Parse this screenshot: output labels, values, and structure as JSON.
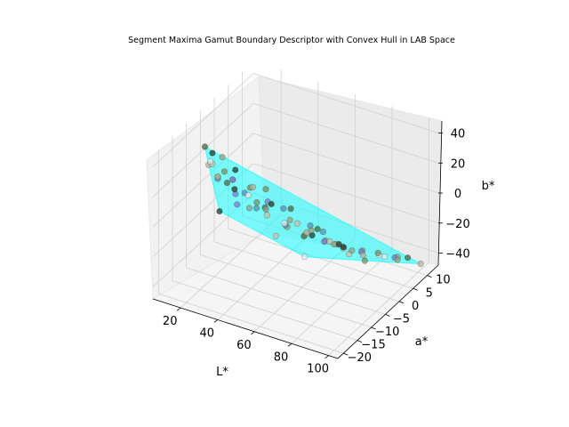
{
  "chart_data": {
    "type": "scatter",
    "projection": "3d",
    "title": "Segment Maxima Gamut Boundary Descriptor with Convex Hull in LAB Space",
    "xlabel": "L*",
    "ylabel": "a*",
    "zlabel": "b*",
    "xlim": [
      5,
      105
    ],
    "ylim": [
      -22,
      14
    ],
    "zlim": [
      -48,
      48
    ],
    "x_ticks": [
      "20",
      "40",
      "60",
      "80",
      "100"
    ],
    "y_ticks": [
      "−20",
      "−15",
      "−10",
      "−5",
      "0",
      "5",
      "10"
    ],
    "z_ticks": [
      "−40",
      "−20",
      "0",
      "20",
      "40"
    ],
    "grid": true,
    "hull_color": "#00ffff",
    "point_colors": [
      "#1f3b2a",
      "#4a6a3e",
      "#7a8f5a",
      "#9aa07a",
      "#8f9f8f",
      "#b8b09a",
      "#5a8fb0",
      "#7a7acc",
      "#c8c0a8",
      "#e8e8f0"
    ],
    "points": [
      {
        "L": 10,
        "a": -4,
        "b": 20
      },
      {
        "L": 12,
        "a": -8,
        "b": 32
      },
      {
        "L": 15,
        "a": -3,
        "b": 8
      },
      {
        "L": 16,
        "a": -6,
        "b": 10
      },
      {
        "L": 18,
        "a": -2,
        "b": 2
      },
      {
        "L": 20,
        "a": -12,
        "b": 30
      },
      {
        "L": 22,
        "a": -10,
        "b": 18
      },
      {
        "L": 24,
        "a": -5,
        "b": 0
      },
      {
        "L": 25,
        "a": -14,
        "b": 36
      },
      {
        "L": 27,
        "a": -16,
        "b": 42
      },
      {
        "L": 28,
        "a": -8,
        "b": 10
      },
      {
        "L": 30,
        "a": -12,
        "b": 22
      },
      {
        "L": 31,
        "a": -2,
        "b": -8
      },
      {
        "L": 32,
        "a": -15,
        "b": 45
      },
      {
        "L": 33,
        "a": -6,
        "b": -4
      },
      {
        "L": 34,
        "a": -18,
        "b": 38
      },
      {
        "L": 35,
        "a": -9,
        "b": 12
      },
      {
        "L": 36,
        "a": -14,
        "b": 30
      },
      {
        "L": 38,
        "a": -3,
        "b": -12
      },
      {
        "L": 40,
        "a": -11,
        "b": 16
      },
      {
        "L": 42,
        "a": -17,
        "b": 44
      },
      {
        "L": 43,
        "a": -7,
        "b": 2
      },
      {
        "L": 44,
        "a": -13,
        "b": 26
      },
      {
        "L": 46,
        "a": -1,
        "b": -20
      },
      {
        "L": 48,
        "a": -10,
        "b": 8
      },
      {
        "L": 50,
        "a": -16,
        "b": 34
      },
      {
        "L": 51,
        "a": -5,
        "b": -10
      },
      {
        "L": 52,
        "a": -12,
        "b": 18
      },
      {
        "L": 54,
        "a": 0,
        "b": -24
      },
      {
        "L": 55,
        "a": -8,
        "b": -2
      },
      {
        "L": 57,
        "a": -14,
        "b": 22
      },
      {
        "L": 58,
        "a": -3,
        "b": -18
      },
      {
        "L": 60,
        "a": -18,
        "b": 40
      },
      {
        "L": 61,
        "a": -10,
        "b": 6
      },
      {
        "L": 62,
        "a": 2,
        "b": -28
      },
      {
        "L": 64,
        "a": -6,
        "b": -8
      },
      {
        "L": 65,
        "a": -15,
        "b": 24
      },
      {
        "L": 66,
        "a": -1,
        "b": -22
      },
      {
        "L": 68,
        "a": -12,
        "b": 10
      },
      {
        "L": 69,
        "a": 4,
        "b": -34
      },
      {
        "L": 70,
        "a": -8,
        "b": -4
      },
      {
        "L": 72,
        "a": -17,
        "b": 30
      },
      {
        "L": 73,
        "a": 1,
        "b": -26
      },
      {
        "L": 74,
        "a": -11,
        "b": 6
      },
      {
        "L": 76,
        "a": 6,
        "b": -36
      },
      {
        "L": 77,
        "a": -4,
        "b": -14
      },
      {
        "L": 78,
        "a": -14,
        "b": 16
      },
      {
        "L": 80,
        "a": 3,
        "b": -30
      },
      {
        "L": 81,
        "a": -9,
        "b": -2
      },
      {
        "L": 82,
        "a": 8,
        "b": -40
      },
      {
        "L": 84,
        "a": -6,
        "b": -10
      },
      {
        "L": 85,
        "a": -16,
        "b": 20
      },
      {
        "L": 86,
        "a": 5,
        "b": -32
      },
      {
        "L": 88,
        "a": -12,
        "b": 4
      },
      {
        "L": 89,
        "a": 10,
        "b": -42
      },
      {
        "L": 90,
        "a": -3,
        "b": -18
      },
      {
        "L": 91,
        "a": -18,
        "b": 24
      },
      {
        "L": 92,
        "a": 7,
        "b": -36
      },
      {
        "L": 93,
        "a": -10,
        "b": -4
      },
      {
        "L": 94,
        "a": 2,
        "b": -26
      },
      {
        "L": 95,
        "a": -15,
        "b": 12
      },
      {
        "L": 96,
        "a": 9,
        "b": -38
      },
      {
        "L": 97,
        "a": -7,
        "b": -12
      },
      {
        "L": 98,
        "a": 4,
        "b": -30
      },
      {
        "L": 99,
        "a": -13,
        "b": 6
      },
      {
        "L": 100,
        "a": 11,
        "b": -44
      },
      {
        "L": 58,
        "a": -20,
        "b": 30
      },
      {
        "L": 46,
        "a": -19,
        "b": 26
      },
      {
        "L": 70,
        "a": -21,
        "b": 18
      },
      {
        "L": 84,
        "a": -20,
        "b": 8
      },
      {
        "L": 38,
        "a": -20,
        "b": 20
      }
    ]
  }
}
